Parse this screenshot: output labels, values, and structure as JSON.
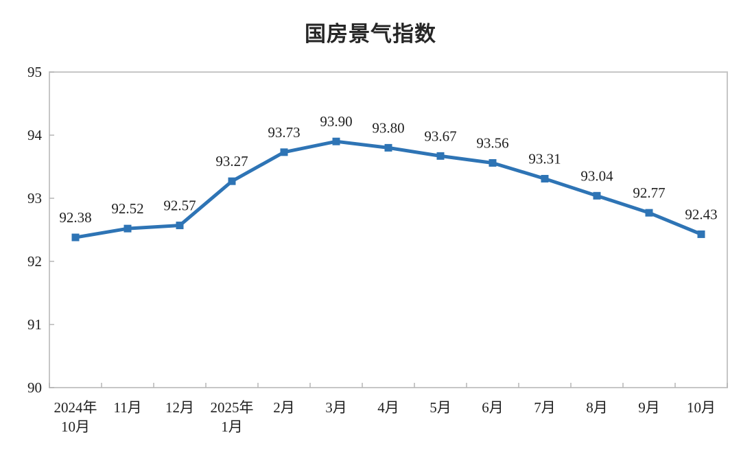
{
  "chart_data": {
    "type": "line",
    "title": "国房景气指数",
    "categories": [
      [
        "2024年",
        "10月"
      ],
      [
        "11月"
      ],
      [
        "12月"
      ],
      [
        "2025年",
        "1月"
      ],
      [
        "2月"
      ],
      [
        "3月"
      ],
      [
        "4月"
      ],
      [
        "5月"
      ],
      [
        "6月"
      ],
      [
        "7月"
      ],
      [
        "8月"
      ],
      [
        "9月"
      ],
      [
        "10月"
      ]
    ],
    "values": [
      92.38,
      92.52,
      92.57,
      93.27,
      93.73,
      93.9,
      93.8,
      93.67,
      93.56,
      93.31,
      93.04,
      92.77,
      92.43
    ],
    "data_labels": [
      "92.38",
      "92.52",
      "92.57",
      "93.27",
      "93.73",
      "93.90",
      "93.80",
      "93.67",
      "93.56",
      "93.31",
      "93.04",
      "92.77",
      "92.43"
    ],
    "xlabel": "",
    "ylabel": "",
    "ylim": [
      90,
      95
    ],
    "ytick_step": 1,
    "yticks": [
      "90",
      "91",
      "92",
      "93",
      "94",
      "95"
    ],
    "grid": "off",
    "legend": "none",
    "marker": "square",
    "colors": {
      "line": "#2E74B5",
      "marker": "#2E74B5",
      "frame": "#C6C6C6",
      "tick": "#B5B5B5",
      "label_text": "#1F1F1F",
      "axis_text": "#1F1F1F",
      "title_text": "#262626"
    }
  }
}
